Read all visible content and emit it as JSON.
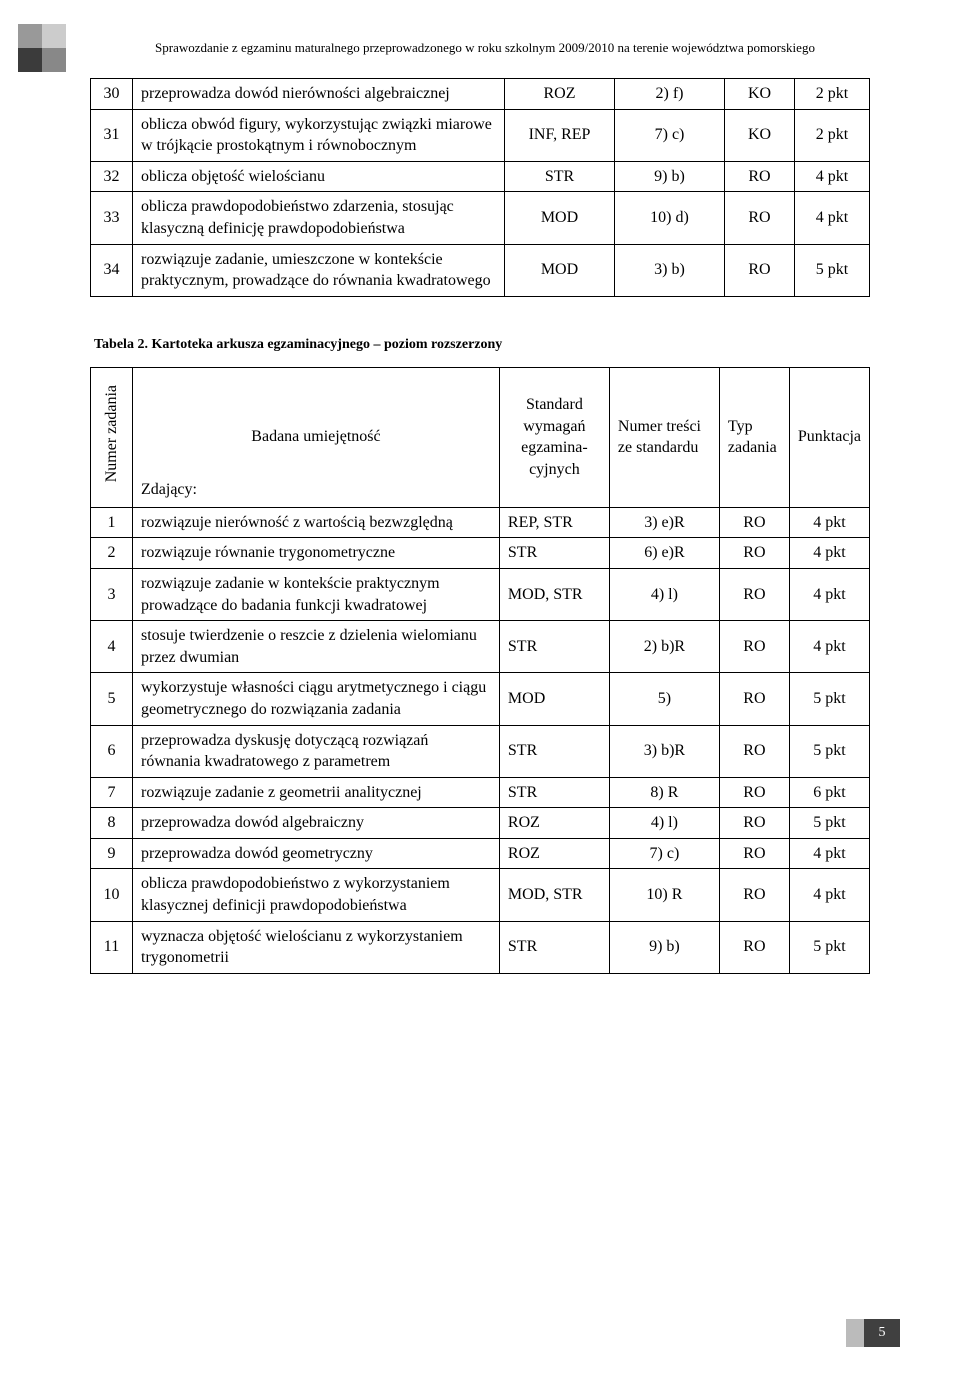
{
  "header_text": "Sprawozdanie z egzaminu maturalnego przeprowadzonego w roku szkolnym 2009/2010 na terenie województwa pomorskiego",
  "table1": {
    "rows": [
      {
        "num": "30",
        "desc": "przeprowadza dowód nierówności algebraicznej",
        "std": "ROZ",
        "tresc": "2) f)",
        "typ": "KO",
        "pkt": "2 pkt"
      },
      {
        "num": "31",
        "desc": "oblicza obwód figury, wykorzystując związki miarowe w trójkącie prostokątnym i równobocznym",
        "std": "INF, REP",
        "tresc": "7) c)",
        "typ": "KO",
        "pkt": "2 pkt"
      },
      {
        "num": "32",
        "desc": "oblicza objętość wielościanu",
        "std": "STR",
        "tresc": "9) b)",
        "typ": "RO",
        "pkt": "4 pkt"
      },
      {
        "num": "33",
        "desc": "oblicza prawdopodobieństwo zdarzenia, stosując klasyczną definicję prawdopodobieństwa",
        "std": "MOD",
        "tresc": "10) d)",
        "typ": "RO",
        "pkt": "4 pkt"
      },
      {
        "num": "34",
        "desc": "rozwiązuje zadanie, umieszczone w kontekście praktycznym, prowadzące do równania kwadratowego",
        "std": "MOD",
        "tresc": "3) b)",
        "typ": "RO",
        "pkt": "5 pkt"
      }
    ]
  },
  "caption2": "Tabela 2. Kartoteka arkusza egzaminacyjnego – poziom rozszerzony",
  "table2": {
    "headers": {
      "num": "Numer zadania",
      "skill_top": "Badana umiejętność",
      "skill_bottom": "Zdający:",
      "std": "Standard wymagań egzamina-cyjnych",
      "tresc": "Numer treści ze standardu",
      "typ": "Typ zadania",
      "pkt": "Punktacja"
    },
    "rows": [
      {
        "num": "1",
        "desc": "rozwiązuje nierówność z wartością bezwzględną",
        "std": "REP, STR",
        "tresc": "3) e)R",
        "typ": "RO",
        "pkt": "4 pkt"
      },
      {
        "num": "2",
        "desc": "rozwiązuje równanie trygonometryczne",
        "std": "STR",
        "tresc": "6) e)R",
        "typ": "RO",
        "pkt": "4 pkt"
      },
      {
        "num": "3",
        "desc": "rozwiązuje zadanie w kontekście praktycznym prowadzące do badania funkcji kwadratowej",
        "std": "MOD, STR",
        "tresc": "4) l)",
        "typ": "RO",
        "pkt": "4 pkt"
      },
      {
        "num": "4",
        "desc": "stosuje twierdzenie o reszcie z dzielenia wielomianu przez dwumian",
        "std": "STR",
        "tresc": "2) b)R",
        "typ": "RO",
        "pkt": "4 pkt"
      },
      {
        "num": "5",
        "desc": "wykorzystuje własności ciągu arytmetycznego i ciągu geometrycznego do rozwiązania zadania",
        "std": "MOD",
        "tresc": "5)",
        "typ": "RO",
        "pkt": "5 pkt"
      },
      {
        "num": "6",
        "desc": "przeprowadza dyskusję dotyczącą rozwiązań równania kwadratowego z parametrem",
        "std": "STR",
        "tresc": "3) b)R",
        "typ": "RO",
        "pkt": "5 pkt"
      },
      {
        "num": "7",
        "desc": "rozwiązuje zadanie z geometrii analitycznej",
        "std": "STR",
        "tresc": "8) R",
        "typ": "RO",
        "pkt": "6 pkt"
      },
      {
        "num": "8",
        "desc": "przeprowadza dowód algebraiczny",
        "std": "ROZ",
        "tresc": "4) l)",
        "typ": "RO",
        "pkt": "5 pkt"
      },
      {
        "num": "9",
        "desc": "przeprowadza dowód geometryczny",
        "std": "ROZ",
        "tresc": "7) c)",
        "typ": "RO",
        "pkt": "4 pkt"
      },
      {
        "num": "10",
        "desc": "oblicza prawdopodobieństwo z wykorzystaniem  klasycznej definicji prawdopodobieństwa",
        "std": "MOD, STR",
        "tresc": "10) R",
        "typ": "RO",
        "pkt": "4 pkt"
      },
      {
        "num": "11",
        "desc": "wyznacza objętość wielościanu z wykorzystaniem trygonometrii",
        "std": "STR",
        "tresc": "9) b)",
        "typ": "RO",
        "pkt": "5 pkt"
      }
    ]
  },
  "page_number": "5"
}
